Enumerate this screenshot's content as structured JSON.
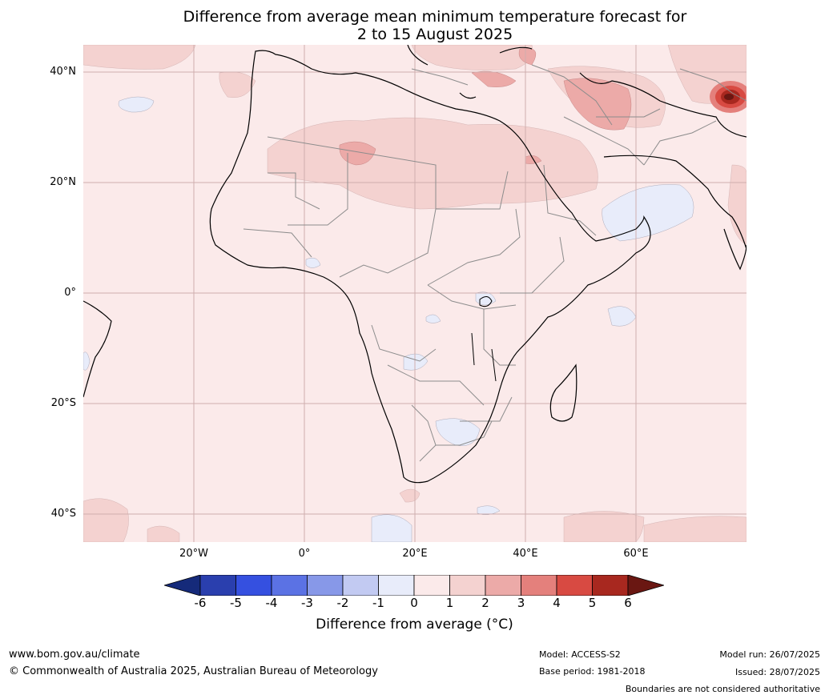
{
  "title": {
    "line1": "Difference from average mean minimum temperature forecast for",
    "line2": "2 to 15 August 2025"
  },
  "map": {
    "lat_labels": [
      "40°N",
      "20°N",
      "0°",
      "20°S",
      "40°S"
    ],
    "lon_labels": [
      "20°W",
      "0°",
      "20°E",
      "40°E",
      "60°E"
    ]
  },
  "colorbar": {
    "ticks": [
      "-6",
      "-5",
      "-4",
      "-3",
      "-2",
      "-1",
      "0",
      "1",
      "2",
      "3",
      "4",
      "5",
      "6"
    ],
    "colors": [
      "#152a7a",
      "#2a3fae",
      "#3550e0",
      "#5b72e4",
      "#8798e8",
      "#c2caf2",
      "#e8ecfa",
      "#fbeaea",
      "#f4d2d0",
      "#ecaaa8",
      "#e4807c",
      "#d84a42",
      "#a8281f",
      "#6a1712"
    ],
    "label": "Difference from average (°C)"
  },
  "footer": {
    "website": "www.bom.gov.au/climate",
    "copyright": "© Commonwealth of Australia 2025, Australian Bureau of Meteorology",
    "model": "Model: ACCESS-S2",
    "base_period": "Base period: 1981-2018",
    "model_run": "Model run: 26/07/2025",
    "issued": "Issued: 28/07/2025",
    "disclaimer": "Boundaries are not considered authoritative"
  }
}
